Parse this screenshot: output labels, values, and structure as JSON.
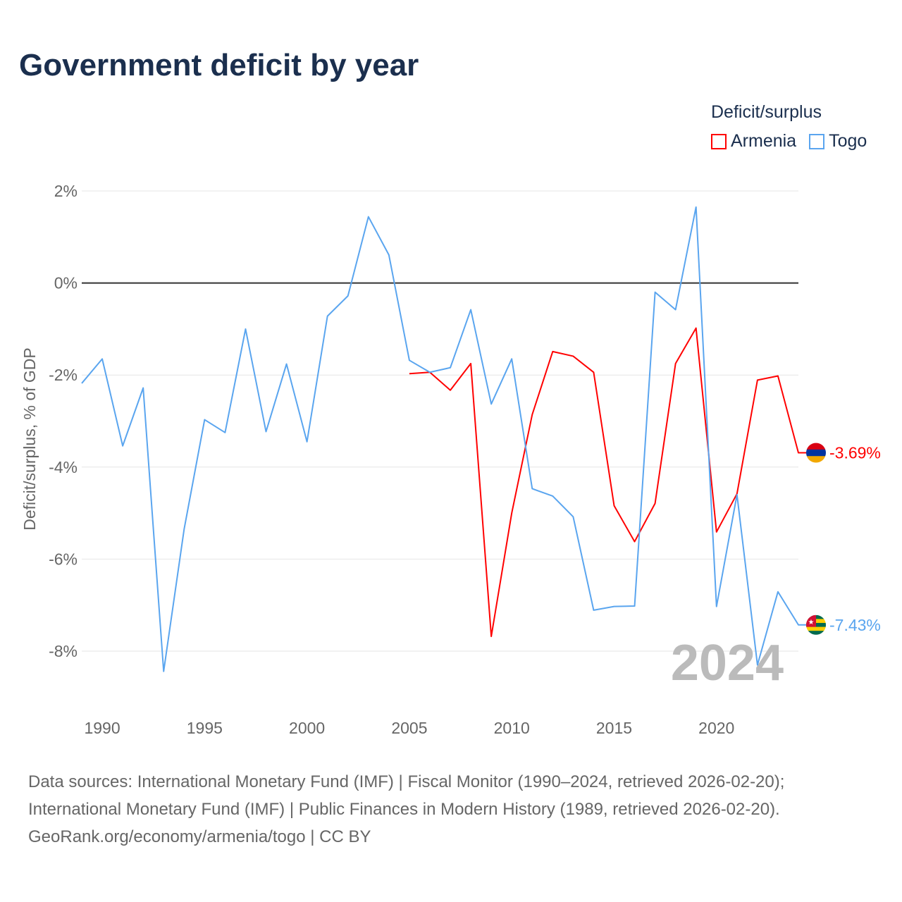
{
  "title": "Government deficit by year",
  "legend": {
    "title": "Deficit/surplus",
    "items": [
      {
        "name": "Armenia",
        "color": "#ff0000"
      },
      {
        "name": "Togo",
        "color": "#5aa5ef"
      }
    ]
  },
  "watermark_year": "2024",
  "footer": [
    "Data sources: International Monetary Fund (IMF) | Fiscal Monitor (1990–2024, retrieved 2026-02-20);",
    "International Monetary Fund (IMF) | Public Finances in Modern History (1989, retrieved 2026-02-20).",
    "GeoRank.org/economy/armenia/togo | CC BY"
  ],
  "chart_data": {
    "type": "line",
    "title": "Government deficit by year",
    "xlabel": "",
    "ylabel": "Deficit/surplus, % of GDP",
    "xlim": [
      1989,
      2024
    ],
    "ylim": [
      -9.3,
      2
    ],
    "x_ticks": [
      "1990",
      "1995",
      "2000",
      "2005",
      "2010",
      "2015",
      "2020"
    ],
    "y_ticks": [
      "2%",
      "0%",
      "-2%",
      "-4%",
      "-6%",
      "-8%"
    ],
    "grid": true,
    "legend_position": "top-right",
    "series": [
      {
        "name": "Armenia",
        "color": "#ff0000",
        "end_label": "-3.69%",
        "x": [
          2005,
          2006,
          2007,
          2008,
          2009,
          2010,
          2011,
          2012,
          2013,
          2014,
          2015,
          2016,
          2017,
          2018,
          2019,
          2020,
          2021,
          2022,
          2023,
          2024
        ],
        "values": [
          -1.97,
          -1.94,
          -2.33,
          -1.75,
          -7.68,
          -5.0,
          -2.86,
          -1.49,
          -1.59,
          -1.94,
          -4.84,
          -5.62,
          -4.79,
          -1.75,
          -0.98,
          -5.41,
          -4.58,
          -2.11,
          -2.02,
          -3.69
        ]
      },
      {
        "name": "Togo",
        "color": "#5aa5ef",
        "end_label": "-7.43%",
        "x": [
          1989,
          1990,
          1991,
          1992,
          1993,
          1994,
          1995,
          1996,
          1997,
          1998,
          1999,
          2000,
          2001,
          2002,
          2003,
          2004,
          2005,
          2006,
          2007,
          2008,
          2009,
          2010,
          2011,
          2012,
          2013,
          2014,
          2015,
          2016,
          2017,
          2018,
          2019,
          2020,
          2021,
          2022,
          2023,
          2024
        ],
        "values": [
          -2.18,
          -1.65,
          -3.54,
          -2.28,
          -8.44,
          -5.35,
          -2.97,
          -3.25,
          -1.0,
          -3.23,
          -1.76,
          -3.45,
          -0.72,
          -0.28,
          1.44,
          0.61,
          -1.68,
          -1.94,
          -1.84,
          -0.58,
          -2.63,
          -1.65,
          -4.47,
          -4.63,
          -5.08,
          -7.11,
          -7.03,
          -7.02,
          -0.2,
          -0.58,
          1.65,
          -7.03,
          -4.6,
          -8.3,
          -6.71,
          -7.43
        ]
      }
    ]
  }
}
